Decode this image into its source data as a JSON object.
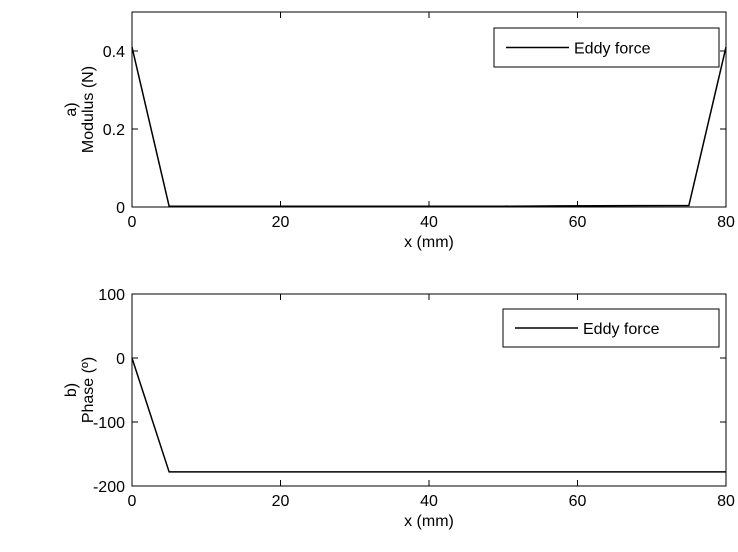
{
  "chart_data": [
    {
      "panel": "a)",
      "type": "line",
      "ylabel": "Modulus (N)",
      "xlabel": "x (mm)",
      "xlim": [
        0,
        80
      ],
      "ylim": [
        0,
        0.5
      ],
      "xticks": [
        0,
        20,
        40,
        60,
        80
      ],
      "yticks": [
        0,
        0.2,
        0.4
      ],
      "ytick_labels": [
        "0",
        "0.2",
        "0.4"
      ],
      "grid": false,
      "legend_position": "top-right",
      "series": [
        {
          "name": "Eddy force",
          "color": "#000000",
          "x": [
            0,
            5,
            10,
            20,
            30,
            40,
            50,
            58,
            75,
            80
          ],
          "y": [
            0.41,
            0.002,
            0.002,
            0.002,
            0.002,
            0.002,
            0.002,
            0.003,
            0.004,
            0.41
          ]
        }
      ]
    },
    {
      "panel": "b)",
      "type": "line",
      "ylabel": "Phase (º)",
      "xlabel": "x (mm)",
      "xlim": [
        0,
        80
      ],
      "ylim": [
        -200,
        100
      ],
      "xticks": [
        0,
        20,
        40,
        60,
        80
      ],
      "yticks": [
        -200,
        -100,
        0,
        100
      ],
      "ytick_labels": [
        "-200",
        "-100",
        "0",
        "100"
      ],
      "grid": false,
      "legend_position": "top-right",
      "series": [
        {
          "name": "Eddy force",
          "color": "#000000",
          "x": [
            0,
            5,
            20,
            40,
            60,
            80
          ],
          "y": [
            0,
            -178,
            -178,
            -178,
            -178,
            -178
          ]
        }
      ]
    }
  ]
}
